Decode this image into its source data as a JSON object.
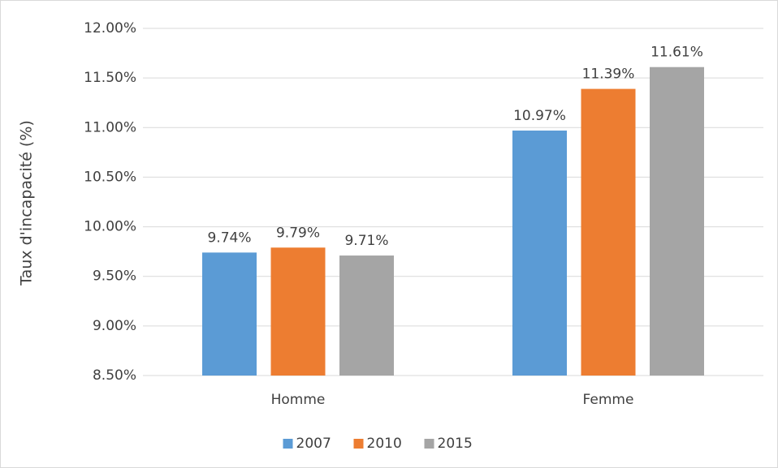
{
  "chart_data": {
    "type": "bar",
    "y_label": "Taux d'incapacité (%)",
    "categories": [
      "Homme",
      "Femme"
    ],
    "series": [
      {
        "name": "2007",
        "color": "#5b9bd5",
        "values": [
          9.74,
          10.97
        ],
        "value_labels": [
          "9.74%",
          "10.97%"
        ]
      },
      {
        "name": "2010",
        "color": "#ed7d31",
        "values": [
          9.79,
          11.39
        ],
        "value_labels": [
          "9.79%",
          "11.39%"
        ]
      },
      {
        "name": "2015",
        "color": "#a5a5a5",
        "values": [
          9.71,
          11.61
        ],
        "value_labels": [
          "9.71%",
          "11.61%"
        ]
      }
    ],
    "ylim": [
      8.5,
      12.0
    ],
    "yticks": [
      {
        "value": 8.5,
        "label": "8.50%"
      },
      {
        "value": 9.0,
        "label": "9.00%"
      },
      {
        "value": 9.5,
        "label": "9.50%"
      },
      {
        "value": 10.0,
        "label": "10.00%"
      },
      {
        "value": 10.5,
        "label": "10.50%"
      },
      {
        "value": 11.0,
        "label": "11.00%"
      },
      {
        "value": 11.5,
        "label": "11.50%"
      },
      {
        "value": 12.0,
        "label": "12.00%"
      }
    ],
    "grid": true,
    "legend": "bottom"
  }
}
